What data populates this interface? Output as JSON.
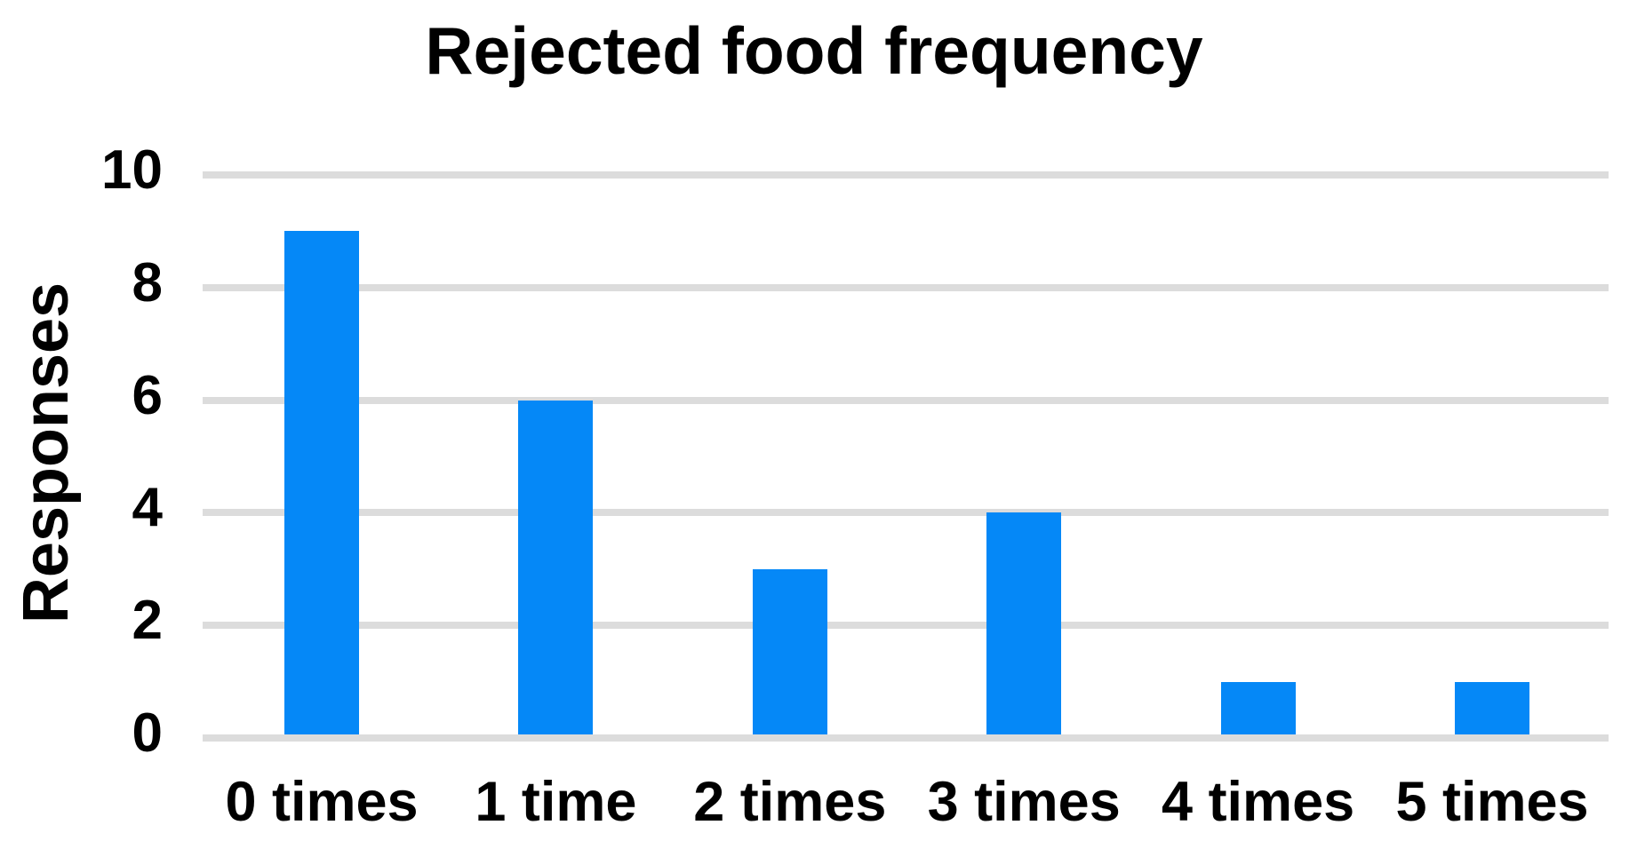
{
  "title": "Rejected food frequency",
  "y_axis": {
    "label": "Responses",
    "ticks": [
      "10",
      "8",
      "6",
      "4",
      "2",
      "0"
    ]
  },
  "x_axis": {
    "categories": [
      "0 times",
      "1 time",
      "2 times",
      "3 times",
      "4 times",
      "5 times"
    ]
  },
  "chart_data": {
    "type": "bar",
    "title": "Rejected food frequency",
    "categories": [
      "0 times",
      "1 time",
      "2 times",
      "3 times",
      "4 times",
      "5 times"
    ],
    "values": [
      9,
      6,
      3,
      4,
      1,
      1
    ],
    "xlabel": "",
    "ylabel": "Responses",
    "ylim": [
      0,
      10
    ],
    "yticks": [
      0,
      2,
      4,
      6,
      8,
      10
    ],
    "grid": "horizontal-only",
    "legend_position": "none",
    "colors": {
      "bar": "#0588f7",
      "gridline": "#dcdcdc",
      "text": "#000000",
      "background": "#ffffff"
    }
  }
}
